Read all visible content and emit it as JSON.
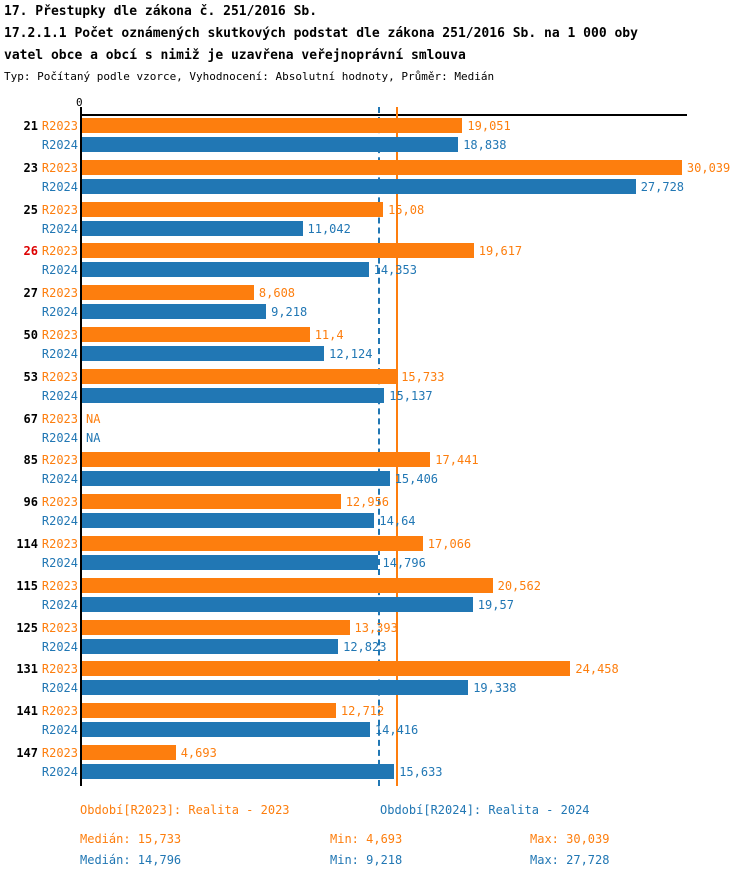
{
  "header": {
    "line1": "17. Přestupky dle zákona č. 251/2016 Sb.",
    "line2": "17.2.1.1 Počet oznámených skutkových podstat dle zákona 251/2016 Sb. na 1 000 oby",
    "line3": "vatel obce a obcí s nimiž je uzavřena veřejnoprávní smlouva",
    "meta": "Typ: Počítaný podle vzorce, Vyhodnocení: Absolutní hodnoty, Průměr: Medián"
  },
  "colors": {
    "r2023": "#fd7e0e",
    "r2024": "#2177b4",
    "highlight": "#dd0000",
    "axis": "#000000"
  },
  "chart_data": {
    "type": "bar",
    "orientation": "horizontal",
    "title": "17.2.1.1 Počet oznámených skutkových podstat dle zákona 251/2016 Sb. na 1 000 obyvatel obce a obcí s nimiž je uzavřena veřejnoprávní smlouva",
    "xlabel": "",
    "axis_zero_label": "0",
    "xlim": [
      0,
      30.3
    ],
    "grid": false,
    "legend_position": "bottom",
    "categories": [
      "21",
      "23",
      "25",
      "26",
      "27",
      "50",
      "53",
      "67",
      "85",
      "96",
      "114",
      "115",
      "125",
      "131",
      "141",
      "147"
    ],
    "highlighted_category": "26",
    "series": [
      {
        "name": "R2023",
        "color": "#fd7e0e",
        "period_label": "Období[R2023]: Realita - 2023",
        "values": [
          19.051,
          30.039,
          15.08,
          19.617,
          8.608,
          11.4,
          15.733,
          null,
          17.441,
          12.956,
          17.066,
          20.562,
          13.393,
          24.458,
          12.712,
          4.693
        ],
        "value_labels": [
          "19,051",
          "30,039",
          "15,08",
          "19,617",
          "8,608",
          "11,4",
          "15,733",
          "NA",
          "17,441",
          "12,956",
          "17,066",
          "20,562",
          "13,393",
          "24,458",
          "12,712",
          "4,693"
        ],
        "median": 15.733,
        "stats": {
          "median_label": "Medián: 15,733",
          "min_label": "Min: 4,693",
          "max_label": "Max: 30,039"
        }
      },
      {
        "name": "R2024",
        "color": "#2177b4",
        "period_label": "Období[R2024]: Realita - 2024",
        "values": [
          18.838,
          27.728,
          11.042,
          14.353,
          9.218,
          12.124,
          15.137,
          null,
          15.406,
          14.64,
          14.796,
          19.57,
          12.823,
          19.338,
          14.416,
          15.633
        ],
        "value_labels": [
          "18,838",
          "27,728",
          "11,042",
          "14,353",
          "9,218",
          "12,124",
          "15,137",
          "NA",
          "15,406",
          "14,64",
          "14,796",
          "19,57",
          "12,823",
          "19,338",
          "14,416",
          "15,633"
        ],
        "median": 14.796,
        "stats": {
          "median_label": "Medián: 14,796",
          "min_label": "Min: 9,218",
          "max_label": "Max: 27,728"
        }
      }
    ]
  }
}
